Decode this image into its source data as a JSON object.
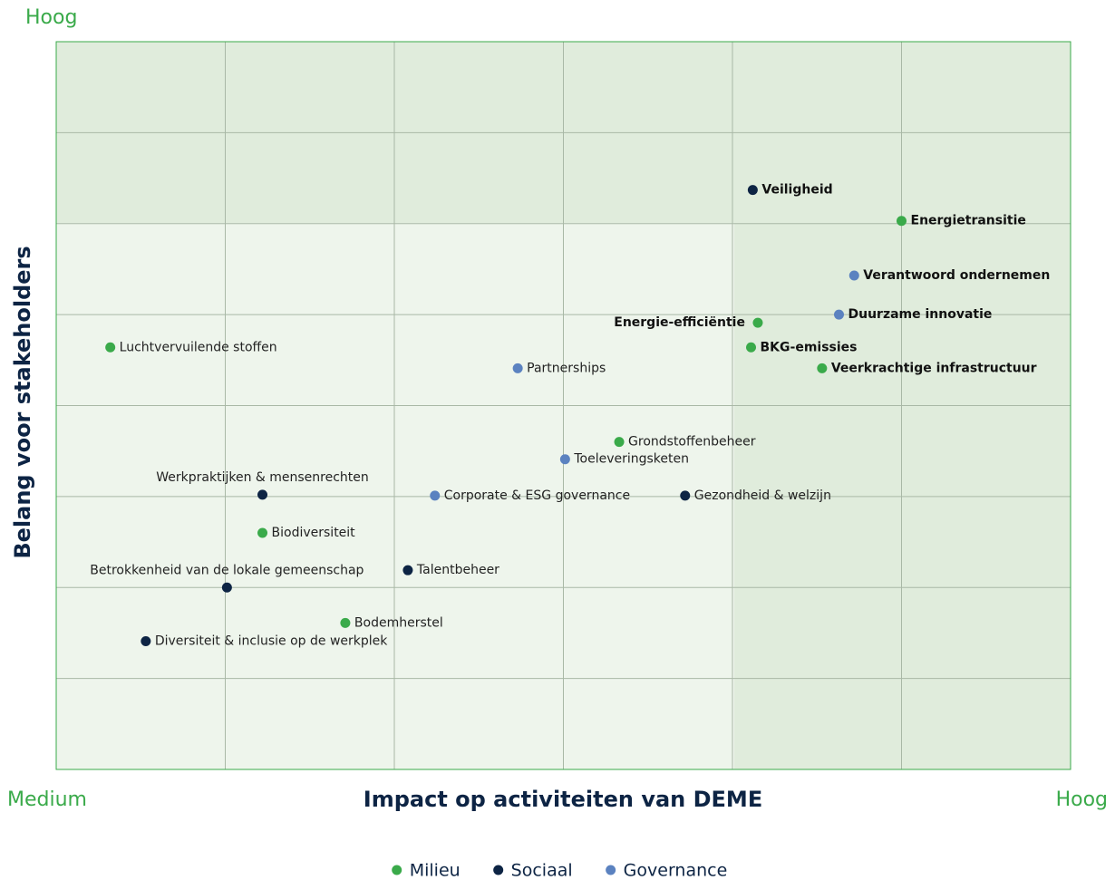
{
  "chart_data": {
    "type": "scatter",
    "x_label": "Impact op activiteiten van DEME",
    "y_label": "Belang voor stakeholders",
    "x_low_label": "Medium",
    "x_high_label": "Hoog",
    "y_high_label": "Hoog",
    "xlim": [
      0,
      6
    ],
    "ylim": [
      0,
      8
    ],
    "xticks": [
      0,
      1,
      2,
      3,
      4,
      5,
      6
    ],
    "yticks": [
      0,
      1,
      2,
      3,
      4,
      5,
      6,
      7,
      8
    ],
    "grid": true,
    "legend": "bottom",
    "series": [
      {
        "name": "Milieu",
        "color": "#3aaa4a",
        "labels": [
          "Energietransitie",
          "Energie-efficiëntie",
          "BKG-emissies",
          "Veerkrachtige infrastructuur",
          "Luchtvervuilende stoffen",
          "Grondstoffenbeheer",
          "Biodiversiteit",
          "Bodemherstel"
        ],
        "x": [
          5.0,
          4.15,
          4.11,
          4.53,
          0.32,
          3.33,
          1.22,
          1.71
        ],
        "values": [
          6.03,
          4.91,
          4.64,
          4.41,
          4.64,
          3.6,
          2.6,
          1.61
        ]
      },
      {
        "name": "Sociaal",
        "color": "#0d2444",
        "labels": [
          "Veiligheid",
          "Gezondheid & welzijn",
          "Werkpraktijken & mensenrechten",
          "Talentbeheer",
          "Betrokkenheid van de lokale gemeenschap",
          "Diversiteit & inclusie op de werkplek"
        ],
        "x": [
          4.12,
          3.72,
          1.22,
          2.08,
          1.01,
          0.53
        ],
        "values": [
          6.37,
          3.01,
          3.02,
          2.19,
          2.0,
          1.41
        ]
      },
      {
        "name": "Governance",
        "color": "#5b82c0",
        "labels": [
          "Verantwoord ondernemen",
          "Duurzame innovatie",
          "Partnerships",
          "Toeleveringsketen",
          "Corporate & ESG governance"
        ],
        "x": [
          4.72,
          4.63,
          2.73,
          3.01,
          2.24
        ],
        "values": [
          5.43,
          5.0,
          4.41,
          3.41,
          3.01
        ]
      }
    ]
  }
}
